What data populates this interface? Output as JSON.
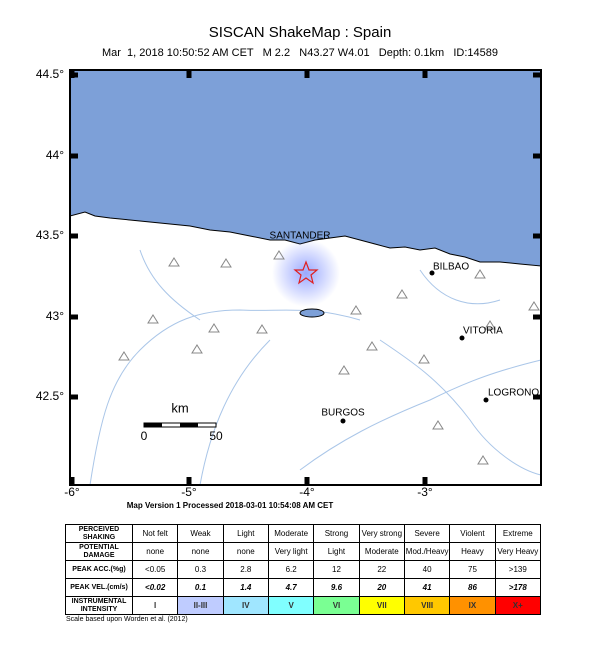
{
  "header": {
    "title": "SISCAN ShakeMap : Spain",
    "subtitle": "Mar  1, 2018 10:50:52 AM CET   M 2.2   N43.27 W4.01   Depth: 0.1km   ID:14589"
  },
  "map": {
    "lat_labels": [
      "44.5°",
      "44°",
      "43.5°",
      "43°",
      "42.5°"
    ],
    "lon_labels": [
      "-6°",
      "-5°",
      "-4°",
      "-3°"
    ],
    "cities": [
      "SANTANDER",
      "BILBAO",
      "VITORIA",
      "LOGRONO",
      "BURGOS"
    ],
    "scale": {
      "unit": "km",
      "start": "0",
      "end": "50"
    },
    "caption": "Map Version 1 Processed 2018-03-01 10:54:08 AM CET"
  },
  "legend_table": {
    "rows": [
      {
        "label": "PERCEIVED SHAKING",
        "cells": [
          "Not felt",
          "Weak",
          "Light",
          "Moderate",
          "Strong",
          "Very strong",
          "Severe",
          "Violent",
          "Extreme"
        ]
      },
      {
        "label": "POTENTIAL DAMAGE",
        "cells": [
          "none",
          "none",
          "none",
          "Very light",
          "Light",
          "Moderate",
          "Mod./Heavy",
          "Heavy",
          "Very Heavy"
        ]
      },
      {
        "label": "PEAK ACC.(%g)",
        "cells": [
          "<0.05",
          "0.3",
          "2.8",
          "6.2",
          "12",
          "22",
          "40",
          "75",
          ">139"
        ]
      },
      {
        "label": "PEAK VEL.(cm/s)",
        "cells": [
          "<0.02",
          "0.1",
          "1.4",
          "4.7",
          "9.6",
          "20",
          "41",
          "86",
          ">178"
        ]
      },
      {
        "label": "INSTRUMENTAL INTENSITY",
        "cells": [
          "I",
          "II-III",
          "IV",
          "V",
          "VI",
          "VII",
          "VIII",
          "IX",
          "X+"
        ]
      }
    ],
    "note": "Scale based upon Worden et al. (2012)"
  }
}
